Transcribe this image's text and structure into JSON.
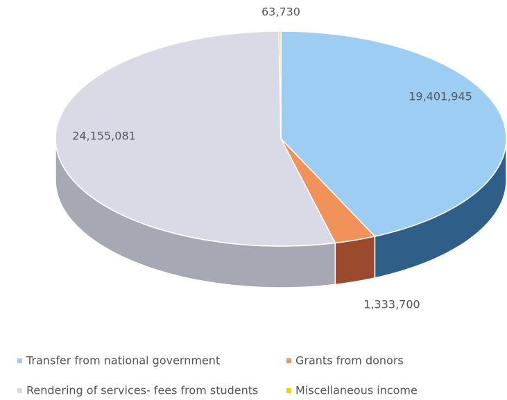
{
  "chart_data": {
    "type": "pie3d",
    "series": [
      {
        "name": "Transfer from national government",
        "color": "#9ecdf4",
        "side_color": "#2f5f88",
        "values": [
          19401945
        ],
        "value_labels": [
          "19,401,945"
        ]
      },
      {
        "name": "Grants from donors",
        "color": "#f0925a",
        "side_color": "#9b4a2d",
        "values": [
          1333700
        ],
        "value_labels": [
          "1,333,700"
        ]
      },
      {
        "name": "Rendering of services- fees from students",
        "color": "#d9dae5",
        "side_color": "#a6a8b3",
        "values": [
          24155081
        ],
        "value_labels": [
          "24,155,081"
        ]
      },
      {
        "name": "Miscellaneous income",
        "color": "#f3d000",
        "side_color": "#b89b00",
        "values": [
          63730
        ],
        "value_labels": [
          "63,730"
        ]
      }
    ],
    "legend": "bottom"
  }
}
